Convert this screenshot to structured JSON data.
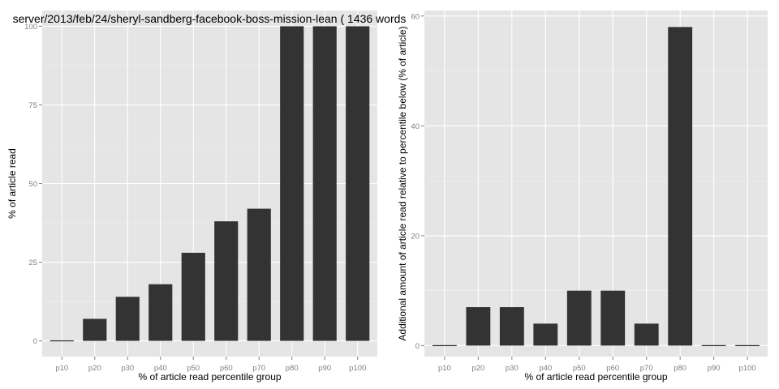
{
  "chart_data": [
    {
      "type": "bar",
      "title": "server/2013/feb/24/sheryl-sandberg-facebook-boss-mission-lean ( 1436 words",
      "xlabel": "% of article read percentile group",
      "ylabel": "% of article read",
      "categories": [
        "p10",
        "p20",
        "p30",
        "p40",
        "p50",
        "p60",
        "p70",
        "p80",
        "p90",
        "p100"
      ],
      "values": [
        0,
        7,
        14,
        18,
        28,
        38,
        42,
        100,
        100,
        100
      ],
      "ylim": [
        -5,
        105
      ],
      "yticks": [
        0,
        25,
        50,
        75,
        100
      ],
      "grid": true,
      "bar_color": "#333333",
      "panel_color": "#e5e5e5"
    },
    {
      "type": "bar",
      "title": "",
      "xlabel": "% of article read percentile group",
      "ylabel": "Additional amount of article read relative to percentile below (% of article)",
      "categories": [
        "p10",
        "p20",
        "p30",
        "p40",
        "p50",
        "p60",
        "p70",
        "p80",
        "p90",
        "p100"
      ],
      "values": [
        0,
        7,
        7,
        4,
        10,
        10,
        4,
        58,
        0,
        0
      ],
      "ylim": [
        -2,
        61
      ],
      "yticks": [
        0,
        20,
        40,
        60
      ],
      "grid": true,
      "bar_color": "#333333",
      "panel_color": "#e5e5e5"
    }
  ]
}
